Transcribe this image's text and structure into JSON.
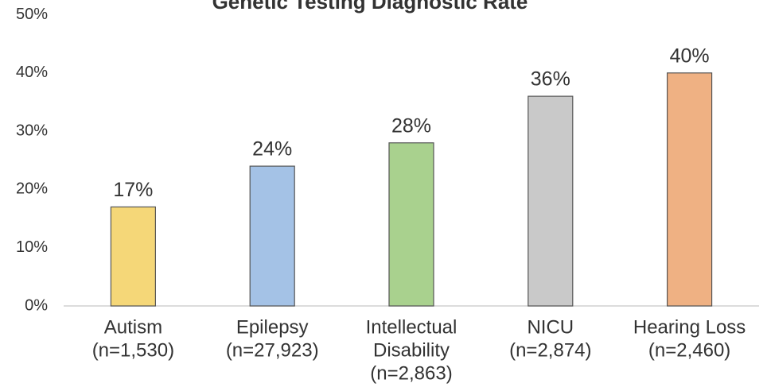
{
  "chart_data": {
    "type": "bar",
    "title": "Genetic Testing Diagnostic Rate",
    "categories": [
      [
        "Autism",
        "(n=1,530)"
      ],
      [
        "Epilepsy",
        "(n=27,923)"
      ],
      [
        "Intellectual",
        "Disability",
        "(n=2,863)"
      ],
      [
        "NICU",
        "(n=2,874)"
      ],
      [
        "Hearing Loss",
        "(n=2,460)"
      ]
    ],
    "values": [
      17,
      24,
      28,
      36,
      40
    ],
    "value_labels": [
      "17%",
      "24%",
      "28%",
      "36%",
      "40%"
    ],
    "colors": [
      "#f5d778",
      "#a4c2e6",
      "#a9d18e",
      "#c9c9c9",
      "#efb183"
    ],
    "ylim": [
      0,
      50
    ],
    "yticks": [
      {
        "value": 0,
        "label": "0%"
      },
      {
        "value": 10,
        "label": "10%"
      },
      {
        "value": 20,
        "label": "20%"
      },
      {
        "value": 30,
        "label": "30%"
      },
      {
        "value": 40,
        "label": "40%"
      },
      {
        "value": 50,
        "label": "50%"
      }
    ],
    "grid": false
  }
}
